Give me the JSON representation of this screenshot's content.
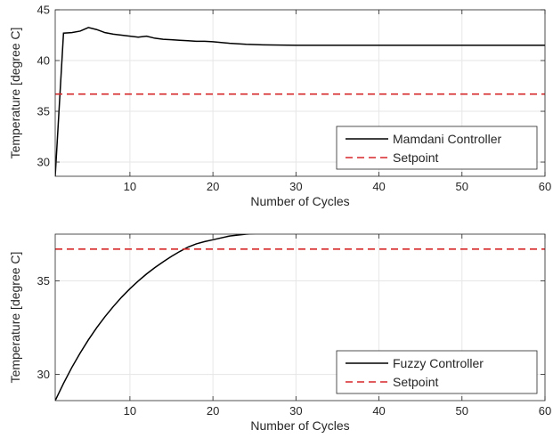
{
  "chart_data": [
    {
      "type": "line",
      "xlabel": "Number of Cycles",
      "ylabel": "Temperature [degree C]",
      "xlim": [
        1,
        60
      ],
      "ylim": [
        28.6,
        45
      ],
      "xticks": [
        10,
        20,
        30,
        40,
        50,
        60
      ],
      "yticks": [
        30,
        35,
        40,
        45
      ],
      "grid": true,
      "legend_position": "bottom-right",
      "series": [
        {
          "name": "Mamdani Controller",
          "color": "#000000",
          "style": "solid",
          "x": [
            1,
            2,
            3,
            4,
            5,
            6,
            7,
            8,
            9,
            10,
            11,
            12,
            13,
            14,
            15,
            16,
            17,
            18,
            19,
            20,
            22,
            24,
            26,
            28,
            30,
            35,
            40,
            45,
            50,
            55,
            60
          ],
          "y": [
            28.6,
            42.7,
            42.75,
            42.9,
            43.25,
            43.05,
            42.75,
            42.6,
            42.5,
            42.4,
            42.3,
            42.4,
            42.2,
            42.1,
            42.05,
            42.0,
            41.95,
            41.9,
            41.9,
            41.85,
            41.7,
            41.6,
            41.55,
            41.52,
            41.5,
            41.5,
            41.5,
            41.5,
            41.5,
            41.5,
            41.5
          ]
        },
        {
          "name": "Setpoint",
          "color": "#d62728",
          "style": "dashed",
          "x": [
            1,
            60
          ],
          "y": [
            36.7,
            36.7
          ]
        }
      ]
    },
    {
      "type": "line",
      "xlabel": "Number of Cycles",
      "ylabel": "Temperature [degree C]",
      "xlim": [
        1,
        60
      ],
      "ylim": [
        28.6,
        37.5
      ],
      "xticks": [
        10,
        20,
        30,
        40,
        50,
        60
      ],
      "yticks": [
        30,
        35
      ],
      "grid": true,
      "legend_position": "bottom-right",
      "series": [
        {
          "name": "Fuzzy Controller",
          "color": "#000000",
          "style": "solid",
          "x": [
            1,
            2,
            3,
            4,
            5,
            6,
            7,
            8,
            9,
            10,
            11,
            12,
            13,
            14,
            15,
            16,
            17,
            18,
            19,
            20,
            22,
            24,
            26,
            28,
            30,
            32,
            35,
            40,
            45,
            50,
            55,
            60
          ],
          "y": [
            28.6,
            29.52,
            30.37,
            31.14,
            31.85,
            32.5,
            33.09,
            33.63,
            34.13,
            34.58,
            34.99,
            35.37,
            35.71,
            36.02,
            36.31,
            36.57,
            36.81,
            36.98,
            37.1,
            37.2,
            37.4,
            37.5,
            37.56,
            37.59,
            37.6,
            37.6,
            37.6,
            37.6,
            37.6,
            37.6,
            37.6,
            37.6
          ]
        },
        {
          "name": "Setpoint",
          "color": "#d62728",
          "style": "dashed",
          "x": [
            1,
            60
          ],
          "y": [
            36.7,
            36.7
          ]
        }
      ]
    }
  ]
}
